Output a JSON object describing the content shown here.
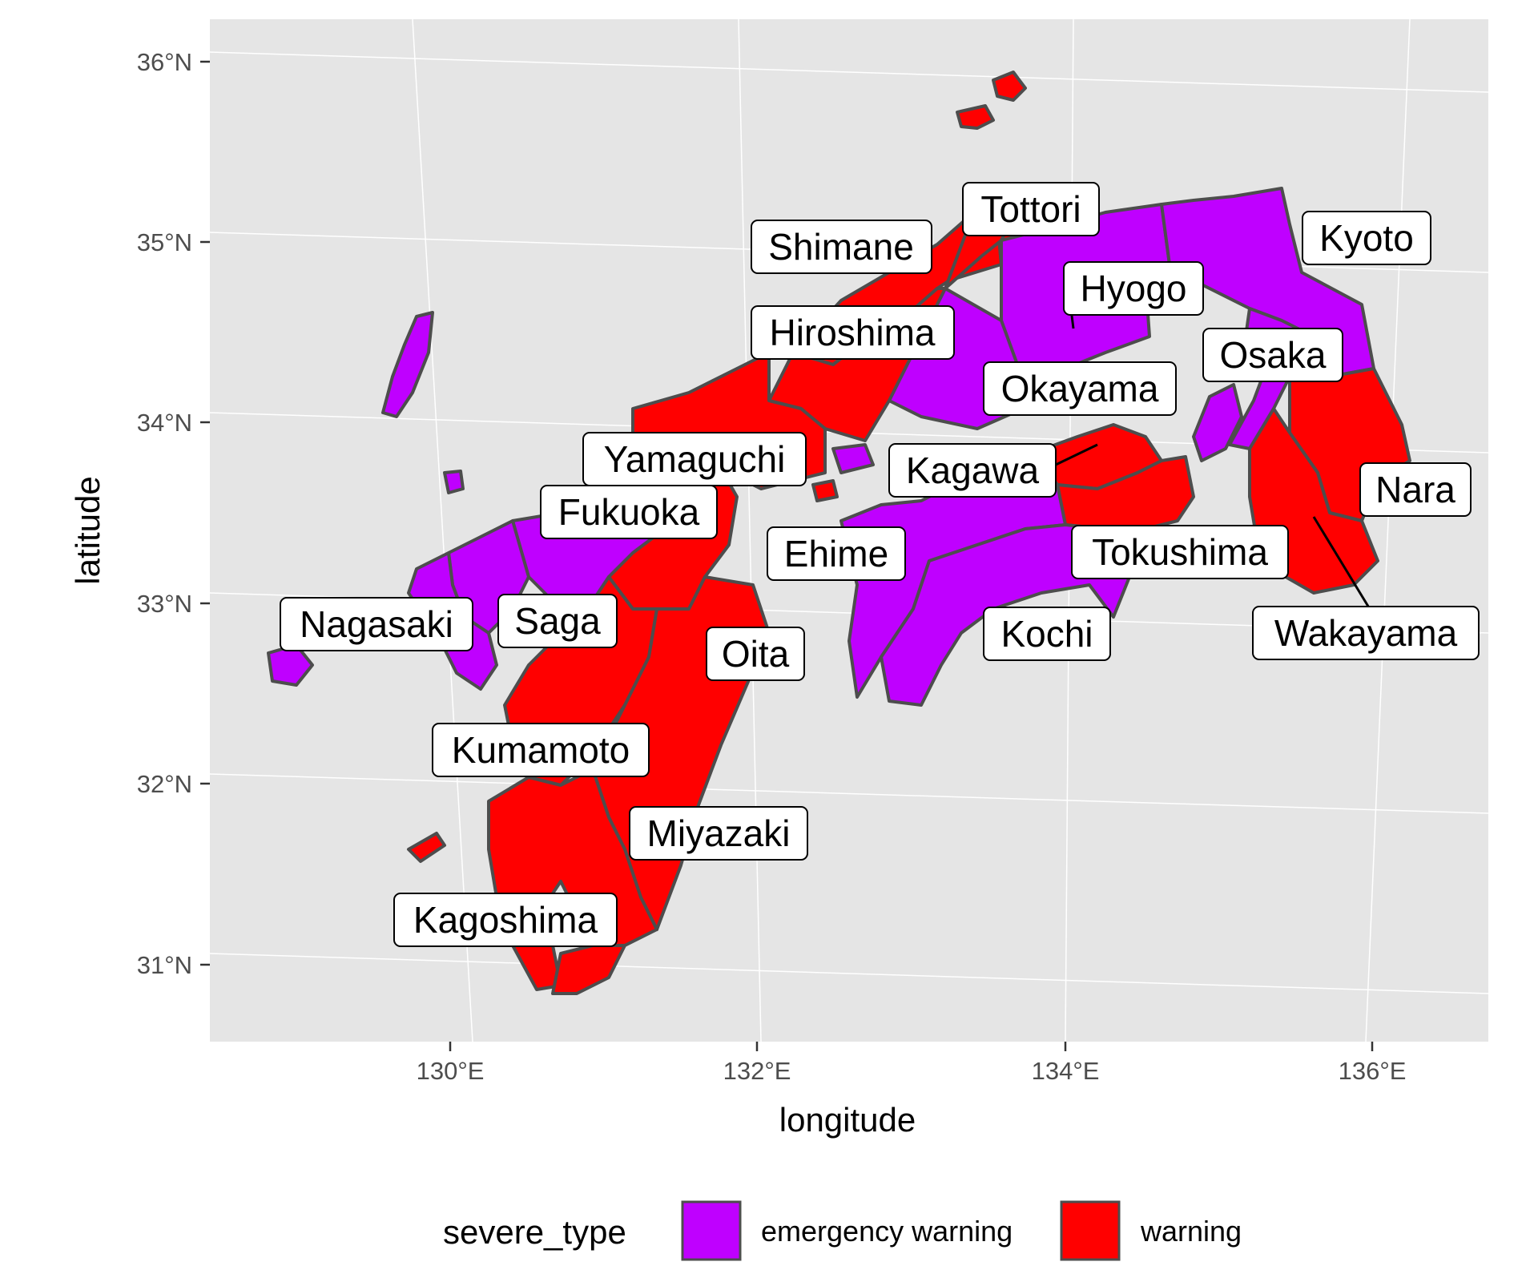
{
  "axes": {
    "x_title": "longitude",
    "y_title": "latitude",
    "x_ticks": [
      {
        "value": 130,
        "label": "130°E"
      },
      {
        "value": 132,
        "label": "132°E"
      },
      {
        "value": 134,
        "label": "134°E"
      },
      {
        "value": 136,
        "label": "136°E"
      }
    ],
    "y_ticks": [
      {
        "value": 31,
        "label": "31°N"
      },
      {
        "value": 32,
        "label": "32°N"
      },
      {
        "value": 33,
        "label": "33°N"
      },
      {
        "value": 34,
        "label": "34°N"
      },
      {
        "value": 35,
        "label": "35°N"
      },
      {
        "value": 36,
        "label": "36°N"
      }
    ]
  },
  "legend": {
    "title": "severe_type",
    "items": [
      {
        "key": "emergency",
        "label": "emergency warning",
        "color": "#BF00FF"
      },
      {
        "key": "warning",
        "label": "warning",
        "color": "#FF0000"
      }
    ]
  },
  "colors": {
    "panel": "#E5E5E5",
    "grid": "#FFFFFF",
    "border": "#4D4D4D"
  },
  "prefectures": [
    {
      "name": "Tottori",
      "type": "warning"
    },
    {
      "name": "Shimane",
      "type": "warning"
    },
    {
      "name": "Kyoto",
      "type": "emergency"
    },
    {
      "name": "Hyogo",
      "type": "emergency"
    },
    {
      "name": "Hiroshima",
      "type": "warning"
    },
    {
      "name": "Osaka",
      "type": "emergency"
    },
    {
      "name": "Okayama",
      "type": "emergency"
    },
    {
      "name": "Yamaguchi",
      "type": "warning"
    },
    {
      "name": "Kagawa",
      "type": "warning"
    },
    {
      "name": "Nara",
      "type": "warning"
    },
    {
      "name": "Fukuoka",
      "type": "emergency"
    },
    {
      "name": "Ehime",
      "type": "emergency"
    },
    {
      "name": "Tokushima",
      "type": "warning"
    },
    {
      "name": "Nagasaki",
      "type": "emergency"
    },
    {
      "name": "Saga",
      "type": "emergency"
    },
    {
      "name": "Kochi",
      "type": "emergency"
    },
    {
      "name": "Wakayama",
      "type": "warning"
    },
    {
      "name": "Oita",
      "type": "warning"
    },
    {
      "name": "Kumamoto",
      "type": "warning"
    },
    {
      "name": "Miyazaki",
      "type": "warning"
    },
    {
      "name": "Kagoshima",
      "type": "warning"
    }
  ]
}
